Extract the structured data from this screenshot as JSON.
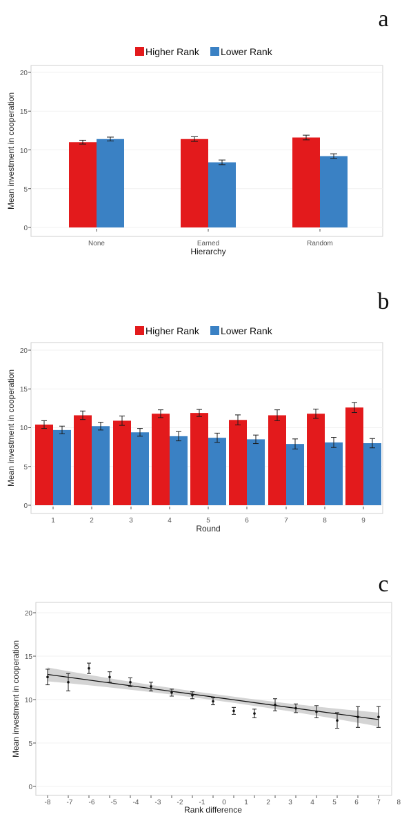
{
  "colors": {
    "higher": "#e31a1c",
    "lower": "#3a81c4"
  },
  "chart_data": [
    {
      "panel": "a",
      "type": "bar",
      "xlabel": "Hierarchy",
      "ylabel": "Mean investment in cooperation",
      "ylim": [
        0,
        20
      ],
      "yticks": [
        "0",
        "5",
        "10",
        "15",
        "20"
      ],
      "categories": [
        "None",
        "Earned",
        "Random"
      ],
      "legend": {
        "position": "top",
        "items": [
          "Higher Rank",
          "Lower Rank"
        ]
      },
      "series": [
        {
          "name": "Higher Rank",
          "values": [
            11.0,
            11.4,
            11.6
          ],
          "errors": [
            0.25,
            0.3,
            0.3
          ]
        },
        {
          "name": "Lower Rank",
          "values": [
            11.4,
            8.4,
            9.2
          ],
          "errors": [
            0.25,
            0.3,
            0.3
          ]
        }
      ]
    },
    {
      "panel": "b",
      "type": "bar",
      "xlabel": "Round",
      "ylabel": "Mean investment in cooperation",
      "ylim": [
        0,
        20
      ],
      "yticks": [
        "0",
        "5",
        "10",
        "15",
        "20"
      ],
      "categories": [
        "1",
        "2",
        "3",
        "4",
        "5",
        "6",
        "7",
        "8",
        "9"
      ],
      "legend": {
        "position": "top",
        "items": [
          "Higher Rank",
          "Lower Rank"
        ]
      },
      "series": [
        {
          "name": "Higher Rank",
          "values": [
            10.4,
            11.6,
            10.9,
            11.8,
            11.9,
            11.0,
            11.6,
            11.8,
            12.6
          ],
          "errors": [
            0.5,
            0.55,
            0.6,
            0.5,
            0.45,
            0.65,
            0.7,
            0.6,
            0.65
          ]
        },
        {
          "name": "Lower Rank",
          "values": [
            9.7,
            10.2,
            9.4,
            8.9,
            8.7,
            8.5,
            7.9,
            8.1,
            8.0
          ],
          "errors": [
            0.5,
            0.5,
            0.5,
            0.6,
            0.6,
            0.55,
            0.65,
            0.65,
            0.6
          ]
        }
      ]
    },
    {
      "panel": "c",
      "type": "scatter",
      "xlabel": "Rank difference",
      "ylabel": "Mean investment in cooperation",
      "ylim": [
        0,
        20
      ],
      "xlim": [
        -8,
        8
      ],
      "yticks": [
        "0",
        "5",
        "10",
        "15",
        "20"
      ],
      "xticks": [
        "-8",
        "-7",
        "-6",
        "-5",
        "-4",
        "-3",
        "-2",
        "-1",
        "0",
        "1",
        "2",
        "3",
        "4",
        "5",
        "6",
        "7",
        "8"
      ],
      "x": [
        -8,
        -7,
        -6,
        -5,
        -4,
        -3,
        -2,
        -1,
        0,
        1,
        2,
        3,
        4,
        5,
        6,
        7,
        8
      ],
      "y": [
        12.6,
        12.0,
        13.6,
        12.6,
        12.0,
        11.5,
        10.8,
        10.5,
        9.8,
        8.7,
        8.4,
        9.4,
        9.0,
        8.6,
        7.6,
        8.0,
        8.0
      ],
      "errors": [
        0.9,
        1.0,
        0.6,
        0.6,
        0.5,
        0.5,
        0.4,
        0.4,
        0.4,
        0.4,
        0.5,
        0.7,
        0.5,
        0.7,
        0.9,
        1.2,
        1.2
      ],
      "trend": {
        "y_at_xmin": 12.9,
        "y_at_xmax": 7.7,
        "band_halfwidth_ends": 0.8,
        "band_halfwidth_center": 0.35
      }
    }
  ],
  "panel_labels": [
    "a",
    "b",
    "c"
  ]
}
